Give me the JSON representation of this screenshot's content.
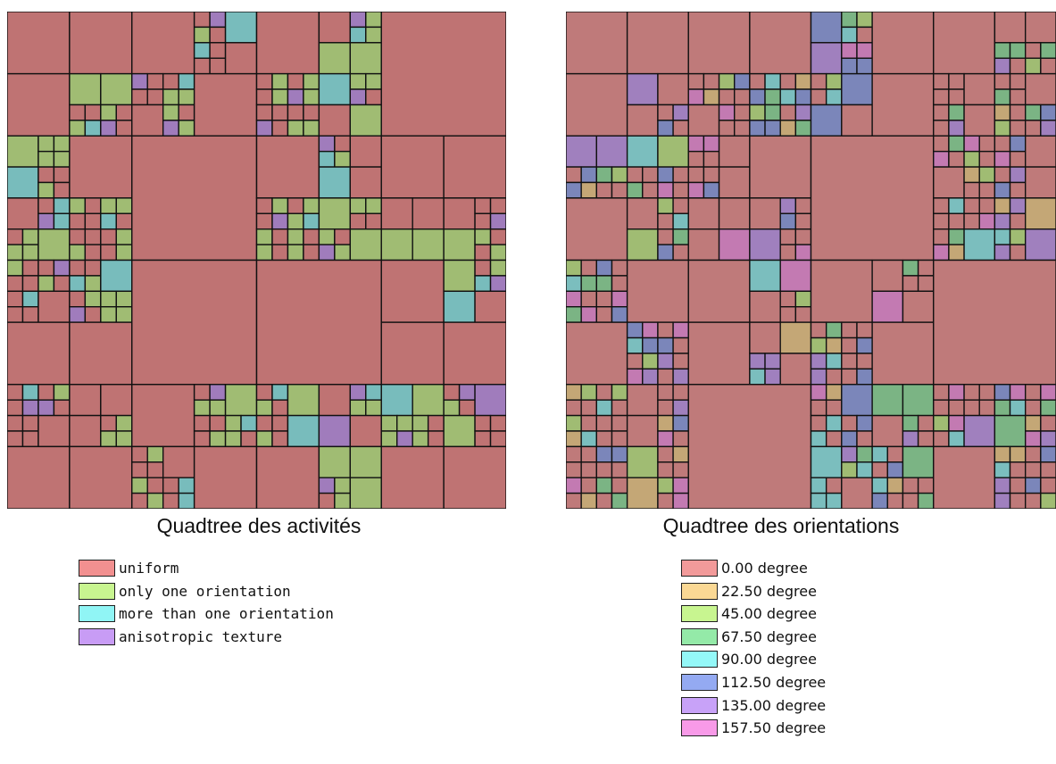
{
  "panels": [
    {
      "caption": "Quadtree des activités",
      "legend": [
        {
          "label": "uniform",
          "color": "#f29090"
        },
        {
          "label": "only one orientation",
          "color": "#c8f590"
        },
        {
          "label": "more than one orientation",
          "color": "#90f5f5"
        },
        {
          "label": "anisotropic texture",
          "color": "#c89cf5"
        }
      ]
    },
    {
      "caption": "Quadtree des orientations",
      "legend": [
        {
          "label": "0.00 degree",
          "color": "#f29a9a"
        },
        {
          "label": "22.50 degree",
          "color": "#fad894"
        },
        {
          "label": "45.00 degree",
          "color": "#c8f590"
        },
        {
          "label": "67.50 degree",
          "color": "#94eaa8"
        },
        {
          "label": "90.00 degree",
          "color": "#94f8f8"
        },
        {
          "label": "112.50 degree",
          "color": "#94aaf2"
        },
        {
          "label": "135.00 degree",
          "color": "#c8a2f8"
        },
        {
          "label": "157.50 degree",
          "color": "#f89ae8"
        }
      ]
    }
  ]
}
